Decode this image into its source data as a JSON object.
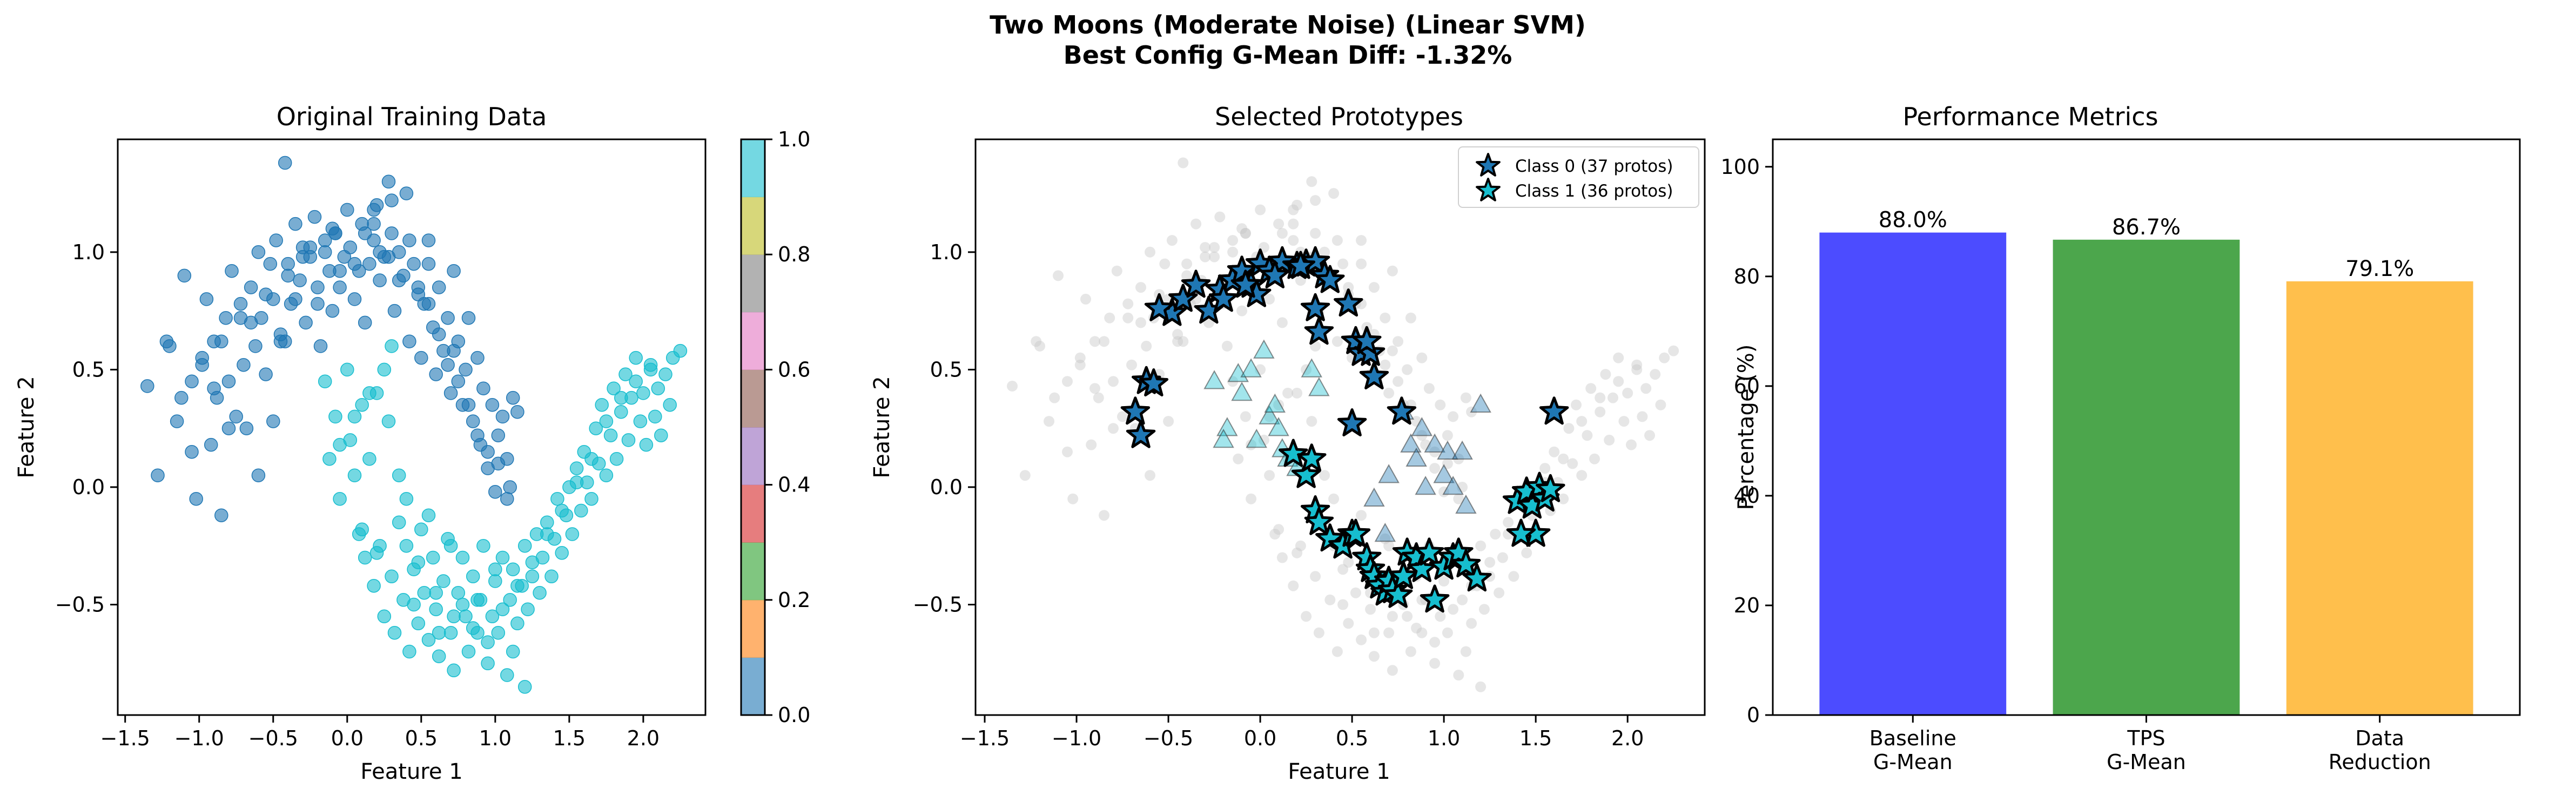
{
  "figure": {
    "suptitle_line1": "Two Moons (Moderate Noise) (Linear SVM)",
    "suptitle_line2": "Best Config G-Mean Diff: -1.32%"
  },
  "chart_data": [
    {
      "type": "scatter",
      "title": "Original Training Data",
      "xlabel": "Feature 1",
      "ylabel": "Feature 2",
      "xlim": [
        -1.55,
        2.42
      ],
      "ylim": [
        -0.97,
        1.48
      ],
      "xticks": [
        -1.5,
        -1.0,
        -0.5,
        0.0,
        0.5,
        1.0,
        1.5,
        2.0
      ],
      "xtick_labels": [
        "−1.5",
        "−1.0",
        "−0.5",
        "0.0",
        "0.5",
        "1.0",
        "1.5",
        "2.0"
      ],
      "yticks": [
        -0.5,
        0.0,
        0.5,
        1.0
      ],
      "ytick_labels": [
        "−0.5",
        "0.0",
        "0.5",
        "1.0"
      ],
      "point_colors": {
        "class_0": "#1f77b4",
        "class_1": "#17becf"
      },
      "marker_alpha": 0.6,
      "series": [
        {
          "class": 0,
          "x": [
            -1.35,
            -1.28,
            -1.22,
            -1.15,
            -1.1,
            -1.05,
            -1.02,
            -0.98,
            -0.95,
            -0.92,
            -0.9,
            -0.88,
            -0.85,
            -0.82,
            -0.8,
            -0.78,
            -0.75,
            -0.72,
            -0.7,
            -0.68,
            -0.65,
            -0.62,
            -0.6,
            -0.58,
            -0.55,
            -0.52,
            -0.5,
            -0.48,
            -0.45,
            -0.42,
            -0.4,
            -0.38,
            -0.35,
            -0.32,
            -0.3,
            -0.28,
            -0.25,
            -0.22,
            -0.2,
            -0.18,
            -0.15,
            -0.12,
            -0.1,
            -0.08,
            -0.05,
            -0.02,
            0.0,
            0.02,
            0.05,
            0.08,
            0.1,
            0.12,
            0.15,
            0.18,
            0.2,
            0.22,
            0.25,
            0.28,
            0.3,
            0.32,
            0.35,
            0.38,
            0.4,
            0.42,
            0.45,
            0.48,
            0.5,
            0.52,
            0.55,
            0.58,
            0.6,
            0.62,
            0.65,
            0.68,
            0.7,
            0.72,
            0.75,
            0.78,
            0.8,
            0.82,
            0.85,
            0.88,
            0.9,
            0.92,
            0.95,
            0.98,
            1.0,
            1.02,
            1.05,
            1.08,
            1.1,
            1.12,
            1.15,
            -1.2,
            -1.12,
            -1.05,
            -0.98,
            -0.9,
            -0.85,
            -0.8,
            -0.72,
            -0.65,
            -0.6,
            -0.55,
            -0.5,
            -0.45,
            -0.4,
            -0.35,
            -0.3,
            -0.25,
            -0.2,
            -0.15,
            -0.1,
            -0.05,
            0.05,
            0.12,
            0.18,
            0.22,
            0.28,
            0.35,
            0.42,
            0.48,
            0.55,
            0.62,
            0.68,
            0.75,
            0.82,
            0.88,
            0.95,
            1.02,
            1.08,
            0.3,
            0.18,
            -0.42,
            -0.08,
            0.55,
            0.72
          ],
          "y": [
            0.43,
            0.05,
            0.62,
            0.28,
            0.9,
            0.45,
            -0.05,
            0.55,
            0.8,
            0.18,
            0.62,
            0.38,
            -0.12,
            0.72,
            0.45,
            0.92,
            0.3,
            0.78,
            0.52,
            0.25,
            0.85,
            0.6,
            1.0,
            0.72,
            0.48,
            0.95,
            0.8,
            1.05,
            0.62,
            1.38,
            0.95,
            0.78,
            1.12,
            0.88,
            1.02,
            0.7,
            0.98,
            1.15,
            0.85,
            0.6,
            1.05,
            0.92,
            0.75,
            1.08,
            0.85,
            0.98,
            1.18,
            1.02,
            0.8,
            0.92,
            1.12,
            0.7,
            0.95,
            1.05,
            1.2,
            0.88,
            0.98,
            1.3,
            1.08,
            0.75,
            1.0,
            0.9,
            1.25,
            0.62,
            0.95,
            0.82,
            0.55,
            0.78,
            1.05,
            0.68,
            0.48,
            0.85,
            0.58,
            0.72,
            0.4,
            0.92,
            0.62,
            0.35,
            0.5,
            0.72,
            0.28,
            0.55,
            0.18,
            0.42,
            0.08,
            0.35,
            -0.02,
            0.22,
            0.3,
            0.12,
            0.0,
            0.38,
            0.32,
            0.6,
            0.38,
            0.15,
            0.52,
            0.42,
            0.62,
            0.25,
            0.72,
            0.7,
            0.05,
            0.82,
            0.28,
            0.65,
            0.9,
            0.8,
            0.98,
            1.02,
            0.78,
            1.0,
            1.1,
            0.92,
            0.95,
            1.08,
            1.12,
            1.0,
            0.98,
            0.88,
            1.05,
            0.85,
            0.78,
            0.65,
            0.52,
            0.45,
            0.35,
            0.22,
            0.15,
            0.1,
            -0.05,
            1.22,
            1.18,
            0.62,
            1.08,
            0.95,
            0.58
          ]
        },
        {
          "class": 1,
          "x": [
            -0.15,
            -0.12,
            -0.08,
            -0.05,
            0.0,
            0.02,
            0.05,
            0.08,
            0.1,
            0.12,
            0.15,
            0.18,
            0.2,
            0.22,
            0.25,
            0.28,
            0.3,
            0.32,
            0.35,
            0.38,
            0.4,
            0.42,
            0.45,
            0.48,
            0.5,
            0.52,
            0.55,
            0.58,
            0.6,
            0.62,
            0.65,
            0.68,
            0.7,
            0.72,
            0.75,
            0.78,
            0.8,
            0.82,
            0.85,
            0.88,
            0.9,
            0.92,
            0.95,
            0.98,
            1.0,
            1.02,
            1.05,
            1.08,
            1.1,
            1.12,
            1.15,
            1.18,
            1.2,
            1.22,
            1.25,
            1.28,
            1.3,
            1.32,
            1.35,
            1.38,
            1.4,
            1.42,
            1.45,
            1.48,
            1.5,
            1.52,
            1.55,
            1.58,
            1.6,
            1.62,
            1.65,
            1.68,
            1.7,
            1.72,
            1.75,
            1.78,
            1.8,
            1.82,
            1.85,
            1.88,
            1.9,
            1.92,
            1.95,
            1.98,
            2.0,
            2.02,
            2.05,
            2.08,
            2.1,
            2.12,
            2.15,
            2.18,
            2.2,
            2.25,
            0.1,
            0.2,
            0.35,
            0.48,
            0.6,
            0.72,
            0.85,
            0.95,
            1.05,
            1.15,
            1.25,
            1.35,
            1.45,
            1.55,
            1.65,
            1.75,
            1.85,
            1.95,
            2.05,
            -0.05,
            0.05,
            0.15,
            0.25,
            0.4,
            0.55,
            0.7,
            0.88,
            1.0,
            1.12,
            1.2,
            0.3,
            0.45,
            0.62,
            0.78
          ],
          "y": [
            0.45,
            0.12,
            0.3,
            -0.05,
            0.5,
            0.2,
            0.05,
            -0.2,
            0.35,
            -0.3,
            0.12,
            -0.42,
            0.4,
            -0.25,
            -0.55,
            0.28,
            -0.38,
            -0.62,
            0.05,
            -0.48,
            -0.25,
            -0.7,
            -0.35,
            -0.58,
            -0.18,
            -0.45,
            -0.65,
            -0.3,
            -0.52,
            -0.72,
            -0.4,
            -0.22,
            -0.62,
            -0.78,
            -0.45,
            -0.3,
            -0.55,
            -0.7,
            -0.38,
            -0.62,
            -0.48,
            -0.25,
            -0.75,
            -0.55,
            -0.4,
            -0.62,
            -0.3,
            -0.8,
            -0.48,
            -0.35,
            -0.58,
            -0.42,
            -0.25,
            -0.52,
            -0.38,
            -0.2,
            -0.45,
            -0.3,
            -0.15,
            -0.38,
            -0.22,
            -0.05,
            -0.28,
            -0.12,
            0.0,
            -0.2,
            0.08,
            -0.1,
            0.15,
            0.02,
            -0.05,
            0.25,
            0.1,
            0.35,
            0.05,
            0.22,
            0.42,
            0.12,
            0.32,
            0.48,
            0.2,
            0.38,
            0.55,
            0.28,
            0.4,
            0.18,
            0.5,
            0.3,
            0.42,
            0.22,
            0.48,
            0.35,
            0.55,
            0.58,
            -0.18,
            -0.28,
            -0.15,
            -0.32,
            -0.45,
            -0.55,
            -0.6,
            -0.66,
            -0.52,
            -0.42,
            -0.32,
            -0.2,
            -0.1,
            0.02,
            0.12,
            0.28,
            0.38,
            0.45,
            0.52,
            0.18,
            0.3,
            0.4,
            0.5,
            -0.05,
            -0.12,
            -0.25,
            -0.48,
            -0.35,
            -0.7,
            -0.85,
            0.6,
            -0.5,
            -0.62,
            -0.5
          ]
        }
      ],
      "colorbar": {
        "colors": [
          "#1f77b4",
          "#ff7f0e",
          "#2ca02c",
          "#d62728",
          "#9467bd",
          "#8c564b",
          "#e377c2",
          "#7f7f7f",
          "#bcbd22",
          "#17becf"
        ],
        "alpha": 0.6,
        "ticks": [
          "0.0",
          "0.2",
          "0.4",
          "0.6",
          "0.8",
          "1.0"
        ]
      }
    },
    {
      "type": "scatter",
      "title": "Selected Prototypes",
      "xlabel": "Feature 1",
      "ylabel": "Feature 2",
      "xlim": [
        -1.55,
        2.42
      ],
      "ylim": [
        -0.97,
        1.48
      ],
      "xticks": [
        -1.5,
        -1.0,
        -0.5,
        0.0,
        0.5,
        1.0,
        1.5,
        2.0
      ],
      "xtick_labels": [
        "−1.5",
        "−1.0",
        "−0.5",
        "0.0",
        "0.5",
        "1.0",
        "1.5",
        "2.0"
      ],
      "yticks": [
        -0.5,
        0.0,
        0.5,
        1.0
      ],
      "ytick_labels": [
        "−0.5",
        "0.0",
        "0.5",
        "1.0"
      ],
      "background_color": "#c8c8c8",
      "legend": {
        "placement": "top-right",
        "entries": [
          "Class 0 (37 protos)",
          "Class 1 (36 protos)"
        ]
      },
      "class0_star_color": "#1f77b4",
      "class1_star_color": "#17becf",
      "class0_triangle_color": "#17becf",
      "class1_triangle_color": "#1f77b4",
      "protos_class0": {
        "x": [
          -0.62,
          -0.68,
          -0.65,
          -0.58,
          -0.48,
          -0.42,
          -0.35,
          -0.28,
          -0.22,
          -0.15,
          -0.1,
          -0.05,
          -0.02,
          0.0,
          0.05,
          0.12,
          0.2,
          0.25,
          0.3,
          0.35,
          0.38,
          0.3,
          0.32,
          0.48,
          0.52,
          0.55,
          0.6,
          0.62,
          0.58,
          0.5,
          0.77,
          -0.55,
          -0.2,
          0.08,
          1.6,
          -0.08,
          0.22
        ],
        "y": [
          0.45,
          0.32,
          0.22,
          0.44,
          0.74,
          0.8,
          0.86,
          0.75,
          0.84,
          0.88,
          0.92,
          0.86,
          0.82,
          0.95,
          0.92,
          0.96,
          0.94,
          0.95,
          0.96,
          0.9,
          0.88,
          0.76,
          0.66,
          0.78,
          0.62,
          0.57,
          0.57,
          0.47,
          0.62,
          0.27,
          0.32,
          0.76,
          0.8,
          0.9,
          0.32,
          0.86,
          0.94
        ]
      },
      "protos_class1": {
        "x": [
          0.18,
          0.25,
          0.3,
          0.32,
          0.38,
          0.45,
          0.5,
          0.52,
          0.58,
          0.6,
          0.62,
          0.65,
          0.68,
          0.7,
          0.72,
          0.75,
          0.78,
          0.8,
          0.85,
          0.88,
          0.92,
          0.95,
          1.0,
          1.05,
          1.08,
          1.12,
          1.18,
          1.4,
          1.45,
          1.48,
          1.5,
          1.52,
          1.55,
          1.58,
          1.42,
          0.28
        ],
        "y": [
          0.14,
          0.05,
          -0.1,
          -0.15,
          -0.22,
          -0.25,
          -0.2,
          -0.2,
          -0.3,
          -0.35,
          -0.38,
          -0.42,
          -0.45,
          -0.4,
          -0.44,
          -0.46,
          -0.38,
          -0.28,
          -0.3,
          -0.35,
          -0.28,
          -0.48,
          -0.34,
          -0.3,
          -0.28,
          -0.33,
          -0.39,
          -0.06,
          -0.02,
          -0.08,
          -0.2,
          0.0,
          -0.05,
          -0.01,
          -0.2,
          0.12
        ]
      },
      "triangles_class0": {
        "x": [
          -0.25,
          -0.18,
          -0.12,
          -0.1,
          -0.05,
          -0.02,
          0.02,
          0.05,
          0.08,
          0.1,
          0.12,
          0.15,
          -0.2,
          0.2,
          0.28,
          0.32
        ],
        "y": [
          0.45,
          0.25,
          0.48,
          0.4,
          0.5,
          0.2,
          0.58,
          0.3,
          0.35,
          0.25,
          0.16,
          0.12,
          0.2,
          0.08,
          0.5,
          0.42
        ]
      },
      "triangles_class1": {
        "x": [
          0.62,
          0.7,
          0.78,
          0.82,
          0.85,
          0.9,
          0.95,
          1.0,
          1.02,
          1.05,
          1.1,
          1.2,
          0.68,
          0.88,
          1.12
        ],
        "y": [
          -0.05,
          0.05,
          0.32,
          0.18,
          0.12,
          0.0,
          0.18,
          0.05,
          0.15,
          0.0,
          0.15,
          0.35,
          -0.2,
          0.25,
          -0.08
        ]
      }
    },
    {
      "type": "bar",
      "title": "Performance Metrics",
      "ylabel": "Percentage (%)",
      "ylim": [
        0,
        105
      ],
      "yticks": [
        0,
        20,
        40,
        60,
        80,
        100
      ],
      "ytick_labels": [
        "0",
        "20",
        "40",
        "60",
        "80",
        "100"
      ],
      "categories": [
        [
          "Baseline",
          "G-Mean"
        ],
        [
          "TPS",
          "G-Mean"
        ],
        [
          "Data",
          "Reduction"
        ]
      ],
      "values": [
        88.0,
        86.7,
        79.1
      ],
      "value_labels": [
        "88.0%",
        "86.7%",
        "79.1%"
      ],
      "colors": [
        "#4c4cff",
        "#4ca64c",
        "#ffbf4c"
      ]
    }
  ]
}
